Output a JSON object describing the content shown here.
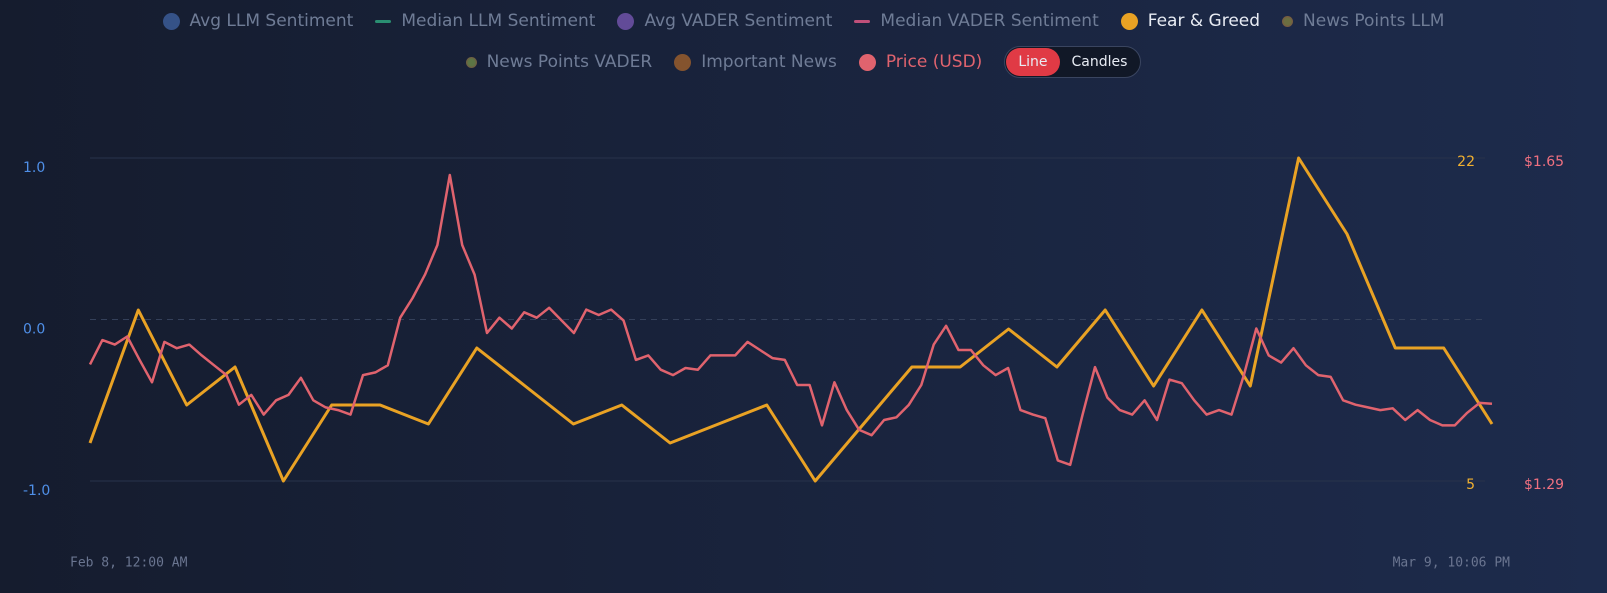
{
  "chart_data": {
    "type": "line",
    "series": [
      {
        "name": "Avg LLM Sentiment",
        "color": "#3d5f9e",
        "marker": "dot",
        "active": false
      },
      {
        "name": "Median LLM Sentiment",
        "color": "#2a8f72",
        "marker": "dash",
        "active": false
      },
      {
        "name": "Avg VADER Sentiment",
        "color": "#7656b0",
        "marker": "dot",
        "active": false
      },
      {
        "name": "Median VADER Sentiment",
        "color": "#c0507a",
        "marker": "dash",
        "active": false
      },
      {
        "name": "Fear & Greed",
        "color": "#e9a224",
        "marker": "dot",
        "active": true,
        "axis": "y2",
        "values": [
          7,
          14,
          9,
          11,
          5,
          9,
          9,
          8,
          12,
          10,
          8,
          9,
          7,
          8,
          9,
          5,
          8,
          11,
          11,
          13,
          11,
          14,
          10,
          14,
          10,
          22,
          18,
          12,
          12,
          8
        ]
      },
      {
        "name": "News Points LLM",
        "color": "#7f8040",
        "marker": "small",
        "active": false
      },
      {
        "name": "News Points VADER",
        "color": "#6e8a48",
        "marker": "small",
        "active": false
      },
      {
        "name": "Important News",
        "color": "#a0602c",
        "marker": "dot",
        "active": false
      },
      {
        "name": "Price (USD)",
        "color": "#e0636e",
        "marker": "dot",
        "active": true,
        "axis": "y3",
        "values": [
          1.42,
          1.447,
          1.442,
          1.451,
          1.425,
          1.4,
          1.445,
          1.438,
          1.442,
          1.43,
          1.419,
          1.408,
          1.375,
          1.386,
          1.364,
          1.38,
          1.386,
          1.405,
          1.38,
          1.372,
          1.369,
          1.364,
          1.408,
          1.411,
          1.419,
          1.472,
          1.494,
          1.52,
          1.553,
          1.631,
          1.553,
          1.52,
          1.455,
          1.472,
          1.46,
          1.478,
          1.472,
          1.483,
          1.469,
          1.455,
          1.481,
          1.475,
          1.481,
          1.469,
          1.425,
          1.43,
          1.414,
          1.408,
          1.416,
          1.414,
          1.43,
          1.43,
          1.43,
          1.445,
          1.436,
          1.427,
          1.425,
          1.397,
          1.397,
          1.352,
          1.4,
          1.369,
          1.347,
          1.341,
          1.358,
          1.361,
          1.375,
          1.397,
          1.442,
          1.463,
          1.436,
          1.436,
          1.419,
          1.408,
          1.416,
          1.369,
          1.364,
          1.36,
          1.313,
          1.308,
          1.364,
          1.417,
          1.383,
          1.369,
          1.364,
          1.38,
          1.358,
          1.403,
          1.399,
          1.38,
          1.364,
          1.369,
          1.364,
          1.408,
          1.46,
          1.43,
          1.422,
          1.438,
          1.419,
          1.408,
          1.406,
          1.38,
          1.375,
          1.372,
          1.369,
          1.371,
          1.358,
          1.369,
          1.358,
          1.352,
          1.352,
          1.366,
          1.377,
          1.376
        ]
      }
    ],
    "toggle": {
      "options": [
        "Line",
        "Candles"
      ],
      "selected": 0
    },
    "x_labels": [
      "Feb 8, 12:00 AM",
      "Mar 9, 10:06 PM"
    ],
    "ylim": [
      -1,
      1
    ],
    "yticks": [
      {
        "value": -1,
        "label": "-1.0"
      },
      {
        "value": 0,
        "label": "0.0"
      },
      {
        "value": 1,
        "label": "1.0"
      }
    ],
    "y2lim": [
      5,
      22
    ],
    "y2ticks": [
      5,
      22
    ],
    "y3lim": [
      1.29,
      1.65
    ],
    "y3ticks": [
      {
        "value": 1.29,
        "label": "$1.29"
      },
      {
        "value": 1.65,
        "label": "$1.65"
      }
    ],
    "grid": true
  }
}
